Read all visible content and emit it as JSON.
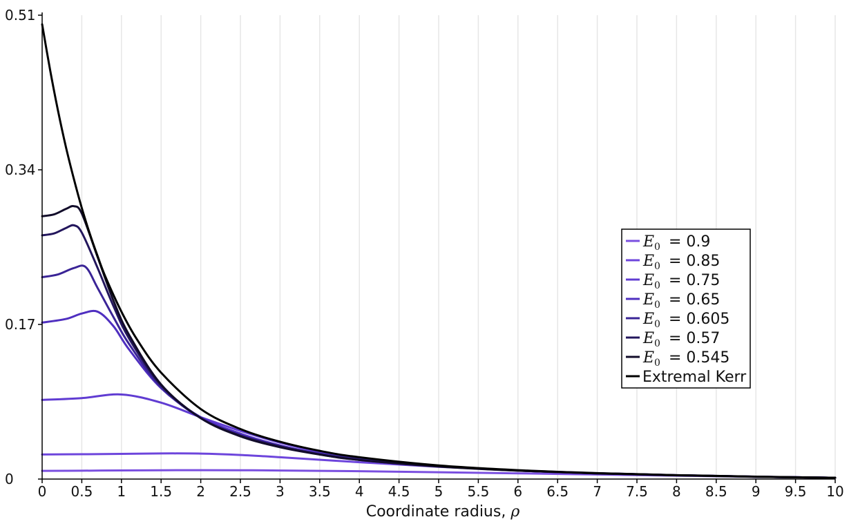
{
  "chart_data": {
    "type": "line",
    "xlabel": "Coordinate radius, ",
    "xlabel_symbol": "ρ",
    "ylabel": "",
    "xlim": [
      0,
      10
    ],
    "ylim": [
      0,
      0.51
    ],
    "x_ticks": [
      0,
      0.5,
      1,
      1.5,
      2,
      2.5,
      3,
      3.5,
      4,
      4.5,
      5,
      5.5,
      6,
      6.5,
      7,
      7.5,
      8,
      8.5,
      9,
      9.5,
      10
    ],
    "x_tick_labels": [
      "0",
      "0.5",
      "1",
      "1.5",
      "2",
      "2.5",
      "3",
      "3.5",
      "4",
      "4.5",
      "5",
      "5.5",
      "6",
      "6.5",
      "7",
      "7.5",
      "8",
      "8.5",
      "9",
      "9.5",
      "10"
    ],
    "y_ticks": [
      0,
      0.17,
      0.34,
      0.51
    ],
    "y_tick_labels": [
      "0",
      "0.17",
      "0.34",
      "0.51"
    ],
    "grid": "vertical",
    "legend_position": "right",
    "legend_symbol": "E",
    "legend_subscript": "0",
    "series": [
      {
        "name": "0.9",
        "color": "#7a4fe0",
        "x": [
          0,
          0.5,
          1,
          1.5,
          2,
          2.5,
          3,
          4,
          5,
          6,
          7,
          8,
          9,
          10
        ],
        "y": [
          0.009,
          0.0092,
          0.0095,
          0.0097,
          0.0098,
          0.0097,
          0.0094,
          0.0086,
          0.0075,
          0.0063,
          0.005,
          0.0037,
          0.0025,
          0.0014
        ]
      },
      {
        "name": "0.85",
        "color": "#6d45dc",
        "x": [
          0,
          0.5,
          1,
          1.5,
          2,
          2.5,
          3,
          4,
          5,
          6,
          7,
          8,
          9,
          10
        ],
        "y": [
          0.027,
          0.0273,
          0.0277,
          0.0282,
          0.028,
          0.0265,
          0.024,
          0.0185,
          0.0135,
          0.0095,
          0.0064,
          0.0042,
          0.0026,
          0.0014
        ]
      },
      {
        "name": "0.75",
        "color": "#603cd2",
        "x": [
          0,
          0.5,
          1,
          1.5,
          2,
          2.5,
          3,
          3.5,
          4,
          5,
          6,
          7,
          8,
          9,
          10
        ],
        "y": [
          0.087,
          0.089,
          0.093,
          0.084,
          0.068,
          0.053,
          0.04,
          0.03,
          0.023,
          0.0145,
          0.0095,
          0.0064,
          0.0043,
          0.0027,
          0.0014
        ]
      },
      {
        "name": "0.65",
        "color": "#4f2fc0",
        "x": [
          0,
          0.3,
          0.5,
          0.7,
          0.9,
          1.1,
          1.5,
          2,
          2.5,
          3,
          3.5,
          4,
          5,
          6,
          7,
          8,
          9,
          10
        ],
        "y": [
          0.172,
          0.176,
          0.182,
          0.184,
          0.168,
          0.142,
          0.1,
          0.068,
          0.05,
          0.037,
          0.028,
          0.022,
          0.0142,
          0.0094,
          0.0063,
          0.0042,
          0.0026,
          0.0014
        ]
      },
      {
        "name": "0.605",
        "color": "#3a2496",
        "x": [
          0,
          0.2,
          0.4,
          0.55,
          0.7,
          0.9,
          1.1,
          1.5,
          2,
          2.5,
          3,
          3.5,
          4,
          5,
          6,
          7,
          8,
          9,
          10
        ],
        "y": [
          0.222,
          0.225,
          0.232,
          0.233,
          0.21,
          0.178,
          0.148,
          0.101,
          0.067,
          0.048,
          0.036,
          0.028,
          0.022,
          0.0141,
          0.0093,
          0.0063,
          0.0042,
          0.0026,
          0.0014
        ]
      },
      {
        "name": "0.57",
        "color": "#23165c",
        "x": [
          0,
          0.15,
          0.3,
          0.4,
          0.5,
          0.7,
          0.9,
          1.1,
          1.5,
          2,
          2.5,
          3,
          3.5,
          4,
          5,
          6,
          7,
          8,
          9,
          10
        ],
        "y": [
          0.268,
          0.27,
          0.276,
          0.279,
          0.271,
          0.232,
          0.19,
          0.154,
          0.103,
          0.067,
          0.048,
          0.036,
          0.027,
          0.021,
          0.014,
          0.0093,
          0.0063,
          0.0042,
          0.0026,
          0.0014
        ]
      },
      {
        "name": "0.545",
        "color": "#120c2a",
        "x": [
          0,
          0.15,
          0.3,
          0.4,
          0.5,
          0.7,
          0.9,
          1.1,
          1.5,
          2,
          2.5,
          3,
          3.5,
          4,
          5,
          6,
          7,
          8,
          9,
          10
        ],
        "y": [
          0.289,
          0.291,
          0.297,
          0.3,
          0.292,
          0.244,
          0.196,
          0.158,
          0.104,
          0.067,
          0.047,
          0.035,
          0.027,
          0.021,
          0.0138,
          0.0092,
          0.0062,
          0.0041,
          0.0025,
          0.0014
        ]
      },
      {
        "name": "Extremal Kerr",
        "color": "#000000",
        "x": [
          0,
          0.1,
          0.2,
          0.3,
          0.4,
          0.5,
          0.6,
          0.7,
          0.8,
          1,
          1.2,
          1.5,
          2,
          2.5,
          3,
          3.5,
          4,
          5,
          6,
          7,
          8,
          9,
          10
        ],
        "y": [
          0.5,
          0.45,
          0.405,
          0.365,
          0.33,
          0.298,
          0.27,
          0.245,
          0.222,
          0.184,
          0.153,
          0.117,
          0.077,
          0.055,
          0.041,
          0.031,
          0.024,
          0.015,
          0.0098,
          0.0065,
          0.0043,
          0.0027,
          0.0014
        ]
      }
    ]
  }
}
